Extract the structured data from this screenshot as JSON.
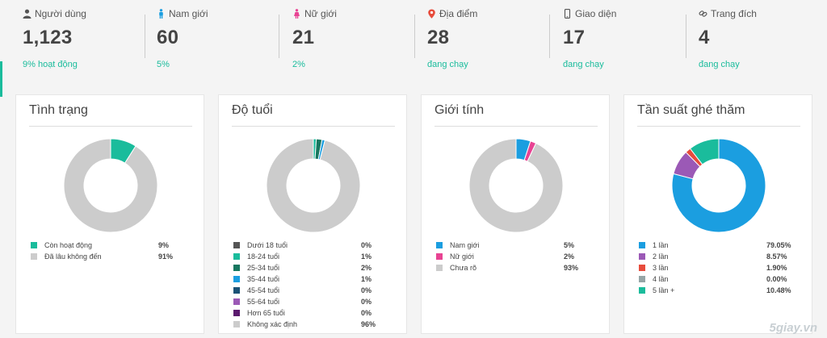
{
  "stats": [
    {
      "icon": "user-icon",
      "label": "Người dùng",
      "value": "1,123",
      "sub": "9% hoạt động"
    },
    {
      "icon": "male-icon",
      "label": "Nam giới",
      "value": "60",
      "sub": "5%"
    },
    {
      "icon": "female-icon",
      "label": "Nữ giới",
      "value": "21",
      "sub": "2%"
    },
    {
      "icon": "map-pin-icon",
      "label": "Địa điểm",
      "value": "28",
      "sub": "đang chạy"
    },
    {
      "icon": "mobile-icon",
      "label": "Giao diện",
      "value": "17",
      "sub": "đang chạy"
    },
    {
      "icon": "link-icon",
      "label": "Trang đích",
      "value": "4",
      "sub": "đang chạy"
    }
  ],
  "colors": {
    "accent": "#1abc9c",
    "gray": "#cccccc",
    "blue": "#1b9ee0",
    "purple": "#9b59b6",
    "red": "#e74c3c",
    "pink": "#e84393"
  },
  "chart_data": [
    {
      "type": "pie",
      "title": "Tình trạng",
      "categories": [
        "Còn hoạt động",
        "Đã lâu không đến"
      ],
      "values": [
        9,
        91
      ],
      "labels": [
        "9%",
        "91%"
      ],
      "colors": [
        "#1abc9c",
        "#cccccc"
      ]
    },
    {
      "type": "pie",
      "title": "Độ tuổi",
      "categories": [
        "Dưới 18 tuổi",
        "18-24 tuổi",
        "25-34 tuổi",
        "35-44 tuổi",
        "45-54 tuổi",
        "55-64 tuổi",
        "Hơn 65 tuổi",
        "Không xác định"
      ],
      "values": [
        0,
        1,
        2,
        1,
        0,
        0,
        0,
        96
      ],
      "labels": [
        "0%",
        "1%",
        "2%",
        "1%",
        "0%",
        "0%",
        "0%",
        "96%"
      ],
      "colors": [
        "#555555",
        "#1abc9c",
        "#16775f",
        "#1b9ee0",
        "#1a5276",
        "#9b59b6",
        "#5b1a6e",
        "#cccccc"
      ]
    },
    {
      "type": "pie",
      "title": "Giới tính",
      "categories": [
        "Nam giới",
        "Nữ giới",
        "Chưa rõ"
      ],
      "values": [
        5,
        2,
        93
      ],
      "labels": [
        "5%",
        "2%",
        "93%"
      ],
      "colors": [
        "#1b9ee0",
        "#e84393",
        "#cccccc"
      ]
    },
    {
      "type": "pie",
      "title": "Tần suất ghé thăm",
      "categories": [
        "1 lần",
        "2 lần",
        "3 lần",
        "4 lần",
        "5 lần +"
      ],
      "values": [
        79.05,
        8.57,
        1.9,
        0.0,
        10.48
      ],
      "labels": [
        "79.05%",
        "8.57%",
        "1.90%",
        "0.00%",
        "10.48%"
      ],
      "colors": [
        "#1b9ee0",
        "#9b59b6",
        "#e74c3c",
        "#95a5a6",
        "#1abc9c"
      ]
    }
  ],
  "watermark": "5giay.vn"
}
